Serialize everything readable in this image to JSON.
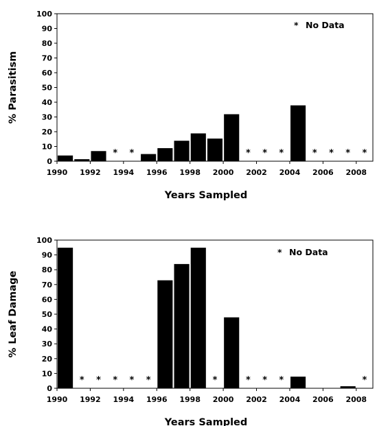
{
  "chart_data": [
    {
      "type": "bar",
      "xlabel": "Years Sampled",
      "ylabel": "% Parasitism",
      "ylim": [
        0,
        100
      ],
      "yticks": [
        0,
        10,
        20,
        30,
        40,
        50,
        60,
        70,
        80,
        90,
        100
      ],
      "xticks": [
        "1990",
        "1992",
        "1994",
        "1996",
        "1998",
        "2000",
        "2002",
        "2004",
        "2006",
        "2008"
      ],
      "grid": false,
      "legend": {
        "symbol": "*",
        "label": "No Data",
        "placement": "top-right"
      },
      "categories": [
        1990,
        1991,
        1992,
        1993,
        1994,
        1995,
        1996,
        1997,
        1998,
        1999,
        2000,
        2001,
        2002,
        2003,
        2004,
        2005,
        2006,
        2007,
        2008
      ],
      "values": [
        4,
        1.5,
        7,
        null,
        null,
        5,
        9,
        14,
        19,
        15.5,
        32,
        null,
        null,
        null,
        38,
        null,
        null,
        null,
        null
      ],
      "no_data_marker": "*"
    },
    {
      "type": "bar",
      "xlabel": "Years Sampled",
      "ylabel": "% Leaf Damage",
      "ylim": [
        0,
        100
      ],
      "yticks": [
        0,
        10,
        20,
        30,
        40,
        50,
        60,
        70,
        80,
        90,
        100
      ],
      "xticks": [
        "1990",
        "1992",
        "1994",
        "1996",
        "1998",
        "2000",
        "2002",
        "2004",
        "2006",
        "2008"
      ],
      "grid": false,
      "legend": {
        "symbol": "*",
        "label": "No Data",
        "placement": "top-right"
      },
      "categories": [
        1990,
        1991,
        1992,
        1993,
        1994,
        1995,
        1996,
        1997,
        1998,
        1999,
        2000,
        2001,
        2002,
        2003,
        2004,
        2005,
        2006,
        2007,
        2008
      ],
      "values": [
        95,
        null,
        null,
        null,
        null,
        null,
        73,
        84,
        95,
        null,
        48,
        null,
        null,
        null,
        8,
        0,
        0,
        1.5,
        null
      ],
      "no_data_marker": "*"
    }
  ]
}
